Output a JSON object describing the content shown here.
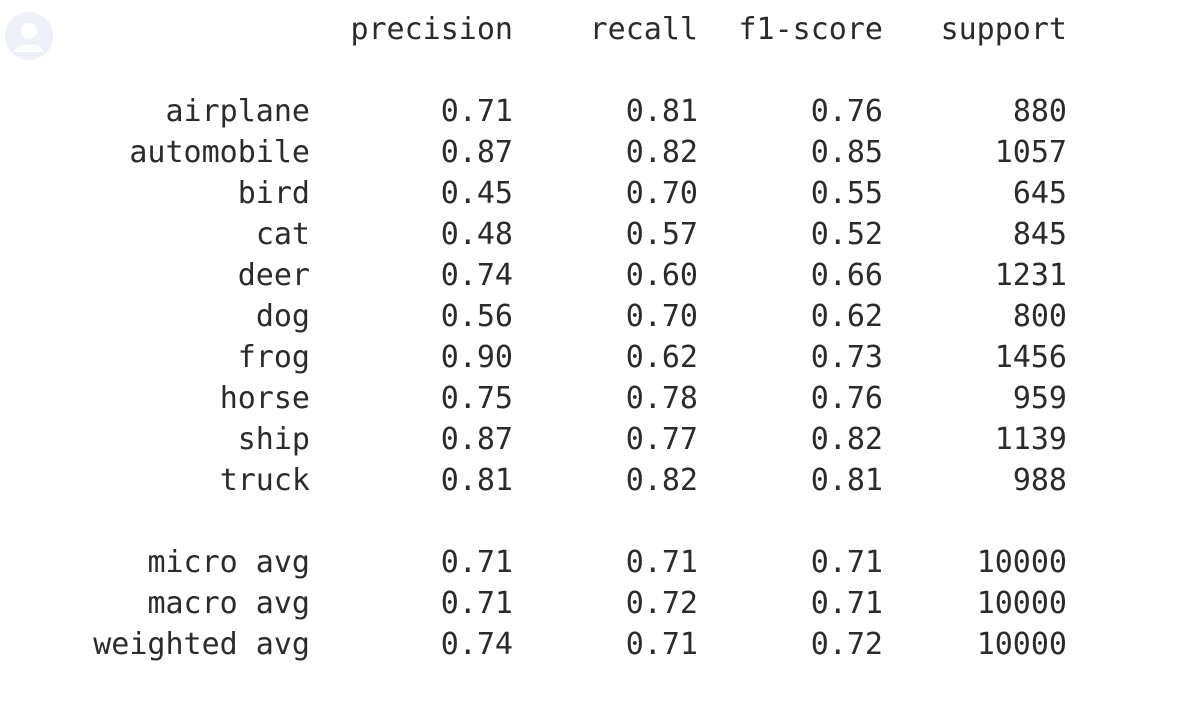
{
  "header": {
    "precision": "precision",
    "recall": "recall",
    "f1": "f1-score",
    "support": "support"
  },
  "rows": [
    {
      "label": "airplane",
      "precision": "0.71",
      "recall": "0.81",
      "f1": "0.76",
      "support": "880"
    },
    {
      "label": "automobile",
      "precision": "0.87",
      "recall": "0.82",
      "f1": "0.85",
      "support": "1057"
    },
    {
      "label": "bird",
      "precision": "0.45",
      "recall": "0.70",
      "f1": "0.55",
      "support": "645"
    },
    {
      "label": "cat",
      "precision": "0.48",
      "recall": "0.57",
      "f1": "0.52",
      "support": "845"
    },
    {
      "label": "deer",
      "precision": "0.74",
      "recall": "0.60",
      "f1": "0.66",
      "support": "1231"
    },
    {
      "label": "dog",
      "precision": "0.56",
      "recall": "0.70",
      "f1": "0.62",
      "support": "800"
    },
    {
      "label": "frog",
      "precision": "0.90",
      "recall": "0.62",
      "f1": "0.73",
      "support": "1456"
    },
    {
      "label": "horse",
      "precision": "0.75",
      "recall": "0.78",
      "f1": "0.76",
      "support": "959"
    },
    {
      "label": "ship",
      "precision": "0.87",
      "recall": "0.77",
      "f1": "0.82",
      "support": "1139"
    },
    {
      "label": "truck",
      "precision": "0.81",
      "recall": "0.82",
      "f1": "0.81",
      "support": "988"
    }
  ],
  "averages": [
    {
      "label": "micro avg",
      "precision": "0.71",
      "recall": "0.71",
      "f1": "0.71",
      "support": "10000"
    },
    {
      "label": "macro avg",
      "precision": "0.71",
      "recall": "0.72",
      "f1": "0.71",
      "support": "10000"
    },
    {
      "label": "weighted avg",
      "precision": "0.74",
      "recall": "0.71",
      "f1": "0.72",
      "support": "10000"
    }
  ],
  "icons": {
    "avatar": "user-avatar-icon"
  },
  "colors": {
    "text": "#2b2b2b",
    "avatar_bg": "#eef1f7",
    "avatar_fg": "#ffffff"
  }
}
